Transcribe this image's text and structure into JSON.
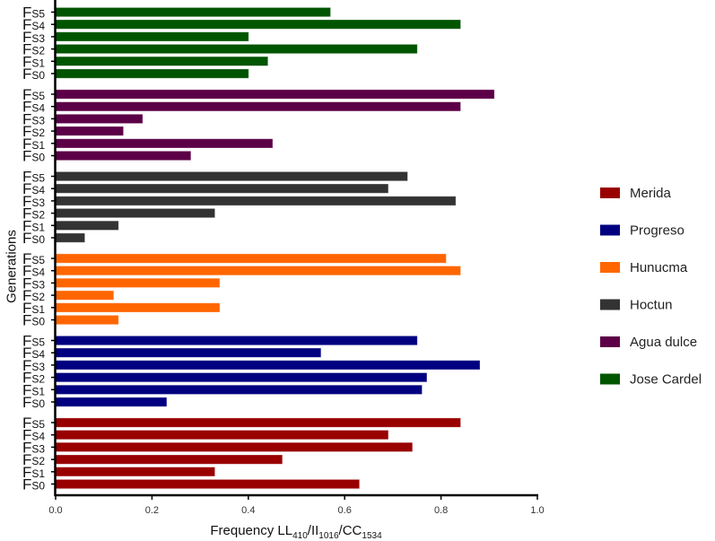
{
  "chart_data": {
    "type": "bar",
    "orientation": "horizontal",
    "title": "",
    "xlabel": {
      "main": "Frequency LL",
      "sub1": "410",
      "sep1": "/II",
      "sub2": "1016",
      "sep2": "/CC",
      "sub3": "1534"
    },
    "ylabel": "Generations",
    "xlim": [
      0,
      1.0
    ],
    "xticks": [
      "0.0",
      "0.2",
      "0.4",
      "0.6",
      "0.8",
      "1.0"
    ],
    "xtick_values": [
      0,
      0.2,
      0.4,
      0.6,
      0.8,
      1.0
    ],
    "grid": false,
    "legend_position": "right",
    "category_prefix": "F",
    "categories": [
      "S0",
      "S1",
      "S2",
      "S3",
      "S4",
      "S5"
    ],
    "series": [
      {
        "name": "Merida",
        "color": "#990000",
        "values": [
          0.63,
          0.33,
          0.47,
          0.74,
          0.69,
          0.84
        ]
      },
      {
        "name": "Progreso",
        "color": "#000080",
        "values": [
          0.23,
          0.76,
          0.77,
          0.88,
          0.55,
          0.75
        ]
      },
      {
        "name": "Hunucma",
        "color": "#ff6600",
        "values": [
          0.13,
          0.34,
          0.12,
          0.34,
          0.84,
          0.81
        ]
      },
      {
        "name": "Hoctun",
        "color": "#333333",
        "values": [
          0.06,
          0.13,
          0.33,
          0.83,
          0.69,
          0.73
        ]
      },
      {
        "name": "Agua dulce",
        "color": "#5c0047",
        "values": [
          0.28,
          0.45,
          0.14,
          0.18,
          0.84,
          0.91
        ]
      },
      {
        "name": "Jose Cardel",
        "color": "#005500",
        "values": [
          0.4,
          0.44,
          0.75,
          0.4,
          0.84,
          0.57
        ]
      }
    ]
  }
}
